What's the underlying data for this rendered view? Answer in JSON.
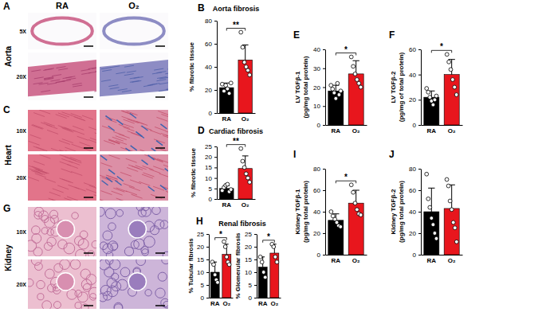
{
  "image_columns": [
    "RA",
    "O₂"
  ],
  "image_panels": [
    {
      "panel": "A",
      "tissue": "Aorta",
      "magnifications": [
        "5X",
        "20X"
      ]
    },
    {
      "panel": "C",
      "tissue": "Heart",
      "magnifications": [
        "10X",
        "20X"
      ]
    },
    {
      "panel": "G",
      "tissue": "Kidney",
      "magnifications": [
        "10X",
        "20X"
      ]
    }
  ],
  "chart_data": [
    {
      "type": "bar",
      "panel": "B",
      "title": "Aorta fibrosis",
      "y_label": [
        "% fibrotic tissue"
      ],
      "categories": [
        "RA",
        "O₂"
      ],
      "values": [
        22,
        46
      ],
      "errors": [
        4,
        13
      ],
      "points": [
        [
          25,
          19,
          24,
          21,
          17,
          26
        ],
        [
          70,
          57,
          44,
          40,
          37,
          33
        ]
      ],
      "colors": [
        "#000000",
        "#e8161d"
      ],
      "ylim": [
        0,
        80
      ],
      "yticks": [
        0,
        20,
        40,
        60,
        80
      ],
      "annotations": [
        {
          "text": "**"
        }
      ]
    },
    {
      "type": "bar",
      "panel": "D",
      "title": "Cardiac fibrosis",
      "y_label": [
        "% fibrotic tissue"
      ],
      "categories": [
        "RA",
        "O₂"
      ],
      "values": [
        5,
        14.5
      ],
      "errors": [
        1.4,
        6
      ],
      "points": [
        [
          4,
          5.5,
          6.5,
          7,
          3.5,
          4.5
        ],
        [
          24,
          18,
          15,
          12,
          10,
          8
        ]
      ],
      "colors": [
        "#000000",
        "#e8161d"
      ],
      "ylim": [
        0,
        25
      ],
      "yticks": [
        0,
        5,
        10,
        15,
        20,
        25
      ],
      "annotations": [
        {
          "text": "**"
        }
      ]
    },
    {
      "type": "bar",
      "panel": "E",
      "y_label": [
        "LV TGFβ-1",
        "(pg/mg total protein)"
      ],
      "categories": [
        "RA",
        "O₂"
      ],
      "values": [
        18,
        27
      ],
      "errors": [
        3,
        7
      ],
      "points": [
        [
          21,
          19,
          17,
          14,
          22,
          16,
          18
        ],
        [
          36,
          31,
          27,
          24,
          22,
          20
        ]
      ],
      "colors": [
        "#000000",
        "#e8161d"
      ],
      "ylim": [
        0,
        40
      ],
      "yticks": [
        0,
        10,
        20,
        30,
        40
      ],
      "annotations": [
        {
          "text": "*"
        }
      ]
    },
    {
      "type": "bar",
      "panel": "F",
      "y_label": [
        "LV TGFβ-2",
        "(pg/mg of total protein)"
      ],
      "categories": [
        "RA",
        "O₂"
      ],
      "values": [
        22,
        40
      ],
      "errors": [
        5,
        12
      ],
      "points": [
        [
          29,
          26,
          22,
          19,
          16,
          20,
          23
        ],
        [
          56,
          50,
          44,
          36,
          30,
          24
        ]
      ],
      "colors": [
        "#000000",
        "#e8161d"
      ],
      "ylim": [
        0,
        60
      ],
      "yticks": [
        0,
        20,
        40,
        60
      ],
      "annotations": [
        {
          "text": "*"
        }
      ]
    },
    {
      "type": "bar",
      "panel": "H",
      "title": "Renal fibrosis",
      "y_label": [
        "% Tubular fibrosis"
      ],
      "categories": [
        "RA",
        "O₂"
      ],
      "values": [
        10,
        17
      ],
      "errors": [
        4,
        4
      ],
      "points": [
        [
          14,
          13,
          9,
          7,
          6
        ],
        [
          22,
          20,
          16,
          14,
          13
        ]
      ],
      "colors": [
        "#000000",
        "#e8161d"
      ],
      "ylim": [
        0,
        25
      ],
      "yticks": [
        0,
        5,
        10,
        15,
        20,
        25
      ],
      "annotations": [
        {
          "text": "*"
        }
      ]
    },
    {
      "type": "bar",
      "y_label": [
        "% Glomerular fibrosis"
      ],
      "categories": [
        "RA",
        "O₂"
      ],
      "values": [
        12,
        17.5
      ],
      "errors": [
        4,
        3.5
      ],
      "points": [
        [
          16,
          14,
          10,
          8
        ],
        [
          21,
          20,
          16,
          14
        ]
      ],
      "colors": [
        "#000000",
        "#e8161d"
      ],
      "ylim": [
        0,
        25
      ],
      "yticks": [
        0,
        5,
        10,
        15,
        20,
        25
      ],
      "annotations": [
        {
          "text": "*"
        }
      ]
    },
    {
      "type": "bar",
      "panel": "I",
      "y_label": [
        "Kidney TGFβ-1",
        "(pg/mg total protein)"
      ],
      "categories": [
        "RA",
        "O₂"
      ],
      "values": [
        32,
        48
      ],
      "errors": [
        6,
        12
      ],
      "points": [
        [
          40,
          36,
          33,
          30,
          27,
          26
        ],
        [
          65,
          58,
          48,
          42,
          38,
          37
        ]
      ],
      "colors": [
        "#000000",
        "#e8161d"
      ],
      "ylim": [
        0,
        80
      ],
      "yticks": [
        0,
        20,
        40,
        60,
        80
      ],
      "annotations": [
        {
          "text": "*"
        }
      ]
    },
    {
      "type": "bar",
      "panel": "J",
      "y_label": [
        "Kidney TGFβ-2",
        "(pg/mg total protein)"
      ],
      "categories": [
        "RA",
        "O₂"
      ],
      "values": [
        40,
        43
      ],
      "errors": [
        22,
        22
      ],
      "points": [
        [
          75,
          52,
          44,
          34,
          28,
          20,
          15
        ],
        [
          70,
          64,
          50,
          42,
          30,
          25,
          12
        ]
      ],
      "colors": [
        "#000000",
        "#e8161d"
      ],
      "ylim": [
        0,
        80
      ],
      "yticks": [
        0,
        20,
        40,
        60,
        80
      ]
    }
  ]
}
